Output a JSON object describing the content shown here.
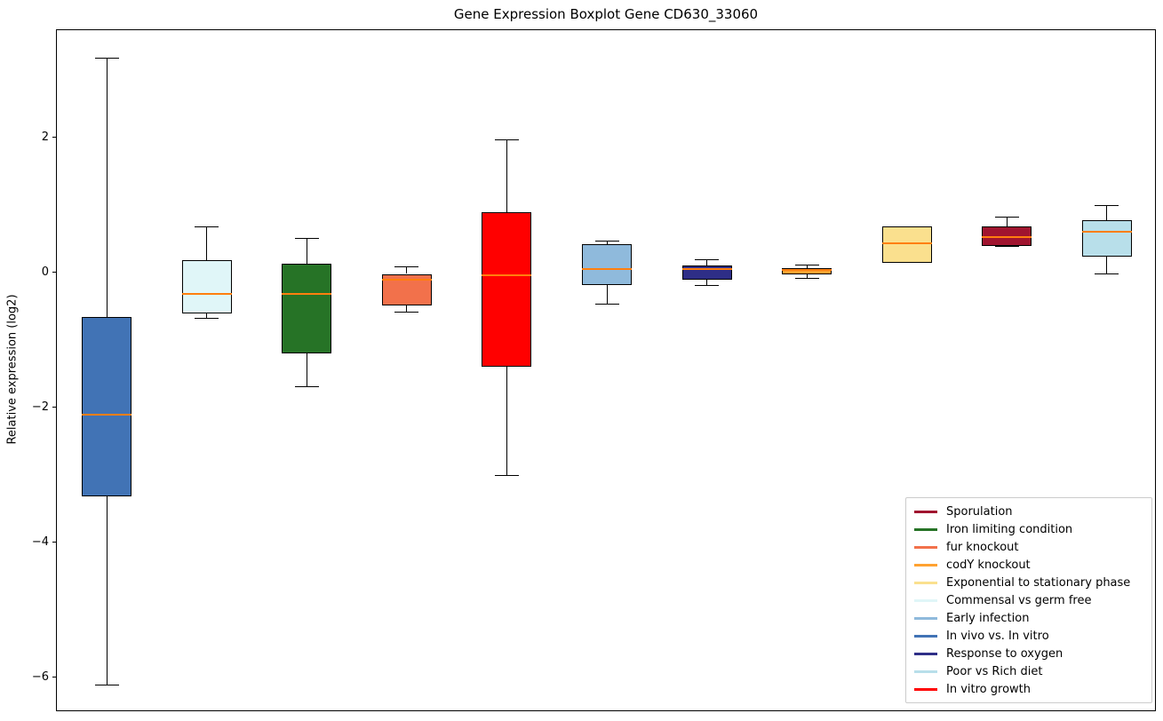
{
  "chart_data": {
    "type": "boxplot",
    "title": "Gene Expression Boxplot Gene CD630_33060",
    "ylabel": "Relative expression (log2)",
    "xlabel": "",
    "ylim": [
      -6.5,
      3.6
    ],
    "yticks": [
      2,
      0,
      -2,
      -4,
      -6
    ],
    "grid": false,
    "legend_position": "lower right",
    "median_color": "#FF7F0E",
    "box_edge_color": "#000000",
    "boxes": [
      {
        "label": "In vivo vs. In vitro",
        "color": "#4173B5",
        "whisker_low": -6.1,
        "q1": -3.3,
        "median": -2.1,
        "q3": -0.65,
        "whisker_high": 3.18
      },
      {
        "label": "Commensal vs germ free",
        "color": "#E0F6F8",
        "whisker_low": -0.67,
        "q1": -0.59,
        "median": -0.31,
        "q3": 0.2,
        "whisker_high": 0.69
      },
      {
        "label": "Iron limiting condition",
        "color": "#267326",
        "whisker_low": -1.68,
        "q1": -1.19,
        "median": -0.3,
        "q3": 0.14,
        "whisker_high": 0.52
      },
      {
        "label": "fur knockout",
        "color": "#F2714B",
        "whisker_low": -0.57,
        "q1": -0.48,
        "median": -0.1,
        "q3": -0.01,
        "whisker_high": 0.1
      },
      {
        "label": "In vitro growth",
        "color": "#FF0000",
        "whisker_low": -3.0,
        "q1": -1.39,
        "median": -0.03,
        "q3": 0.91,
        "whisker_high": 1.98
      },
      {
        "label": "Early infection",
        "color": "#8FBADC",
        "whisker_low": -0.46,
        "q1": -0.17,
        "median": 0.06,
        "q3": 0.43,
        "whisker_high": 0.48
      },
      {
        "label": "Response to oxygen",
        "color": "#2E2E87",
        "whisker_low": -0.18,
        "q1": -0.09,
        "median": 0.06,
        "q3": 0.12,
        "whisker_high": 0.2
      },
      {
        "label": "codY knockout",
        "color": "#FFA231",
        "whisker_low": -0.08,
        "q1": -0.02,
        "median": 0.05,
        "q3": 0.08,
        "whisker_high": 0.12
      },
      {
        "label": "Exponential to stationary phase",
        "color": "#FAE08E",
        "whisker_low": 0.15,
        "q1": 0.15,
        "median": 0.45,
        "q3": 0.7,
        "whisker_high": 0.7
      },
      {
        "label": "Sporulation",
        "color": "#A0142F",
        "whisker_low": 0.4,
        "q1": 0.41,
        "median": 0.53,
        "q3": 0.69,
        "whisker_high": 0.83
      },
      {
        "label": "Poor vs Rich diet",
        "color": "#B8DFEA",
        "whisker_low": -0.01,
        "q1": 0.24,
        "median": 0.61,
        "q3": 0.78,
        "whisker_high": 1.0
      }
    ],
    "legend": [
      {
        "label": "Sporulation",
        "color": "#A0142F"
      },
      {
        "label": "Iron limiting condition",
        "color": "#267326"
      },
      {
        "label": "fur knockout",
        "color": "#F2714B"
      },
      {
        "label": "codY knockout",
        "color": "#FFA231"
      },
      {
        "label": "Exponential to stationary phase",
        "color": "#FAE08E"
      },
      {
        "label": "Commensal vs germ free",
        "color": "#E0F6F8"
      },
      {
        "label": "Early infection",
        "color": "#8FBADC"
      },
      {
        "label": "In vivo vs. In vitro",
        "color": "#4173B5"
      },
      {
        "label": "Response to oxygen",
        "color": "#2E2E87"
      },
      {
        "label": "Poor vs Rich diet",
        "color": "#B8DFEA"
      },
      {
        "label": "In vitro growth",
        "color": "#FF0000"
      }
    ]
  }
}
